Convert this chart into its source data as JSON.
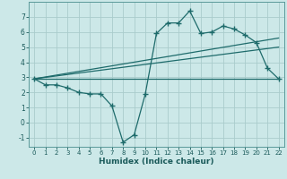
{
  "title": "",
  "xlabel": "Humidex (Indice chaleur)",
  "ylabel": "",
  "bg_color": "#cce8e8",
  "grid_color": "#aacccc",
  "line_color": "#1e6b6b",
  "xlim": [
    -0.5,
    22.5
  ],
  "ylim": [
    -1.6,
    8.0
  ],
  "yticks": [
    -1,
    0,
    1,
    2,
    3,
    4,
    5,
    6,
    7
  ],
  "xticks": [
    0,
    1,
    2,
    3,
    4,
    5,
    6,
    7,
    8,
    9,
    10,
    11,
    12,
    13,
    14,
    15,
    16,
    17,
    18,
    19,
    20,
    21,
    22
  ],
  "series_main": {
    "x": [
      0,
      1,
      2,
      3,
      4,
      5,
      6,
      7,
      8,
      9,
      10,
      11,
      12,
      13,
      14,
      15,
      16,
      17,
      18,
      19,
      20,
      21,
      22
    ],
    "y": [
      2.9,
      2.5,
      2.5,
      2.3,
      2.0,
      1.9,
      1.9,
      1.1,
      -1.3,
      -0.8,
      1.9,
      5.9,
      6.6,
      6.6,
      7.4,
      5.9,
      6.0,
      6.4,
      6.2,
      5.8,
      5.3,
      3.6,
      2.9
    ]
  },
  "series_lines": [
    {
      "x0": 0,
      "y0": 2.9,
      "x1": 22,
      "y1": 2.9
    },
    {
      "x0": 0,
      "y0": 2.9,
      "x1": 22,
      "y1": 5.0
    },
    {
      "x0": 0,
      "y0": 2.9,
      "x1": 22,
      "y1": 5.6
    }
  ]
}
